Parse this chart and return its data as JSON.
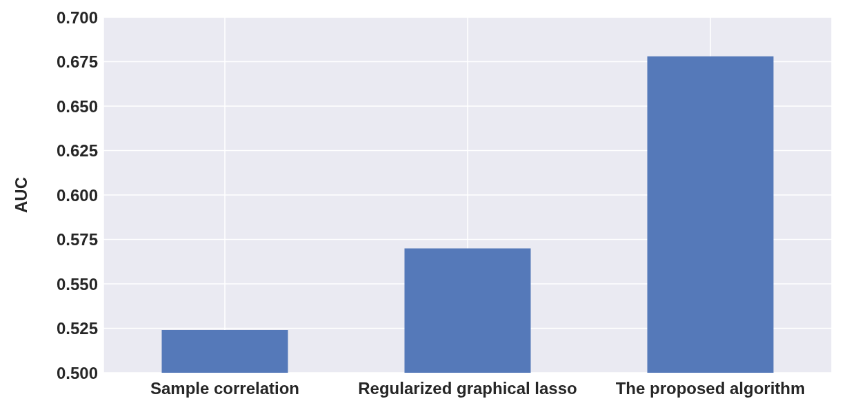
{
  "chart_data": {
    "type": "bar",
    "ylabel": "AUC",
    "categories": [
      "Sample correlation",
      "Regularized graphical lasso",
      "The proposed algorithm"
    ],
    "values": [
      0.524,
      0.57,
      0.678
    ],
    "color": "#5579b9",
    "ylim": [
      0.5,
      0.7
    ],
    "yticks": [
      {
        "value": 0.5,
        "label": "0.500"
      },
      0.525,
      {
        "value": 0.55,
        "label": "0.550"
      },
      0.575,
      {
        "value": 0.6,
        "label": "0.600"
      },
      0.625,
      {
        "value": 0.65,
        "label": "0.650"
      },
      0.675,
      {
        "value": 0.7,
        "label": "0.700"
      }
    ],
    "grid": true
  }
}
